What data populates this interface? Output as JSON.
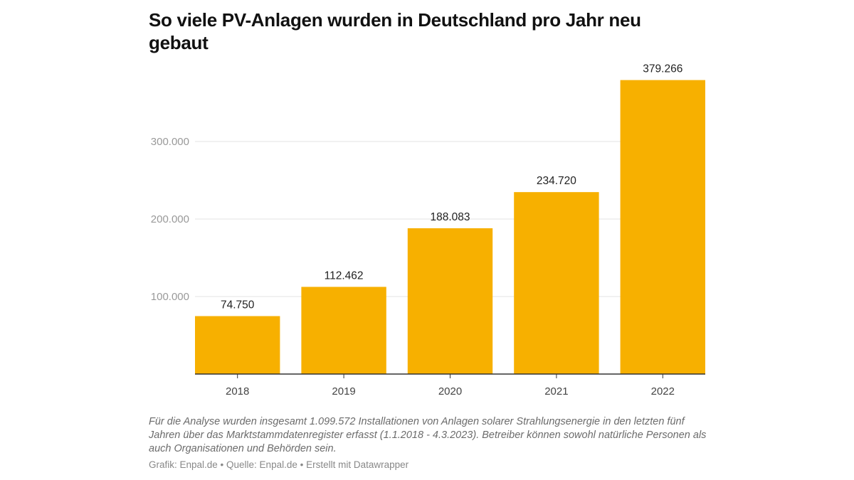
{
  "chart_data": {
    "type": "bar",
    "title": "So viele PV-Anlagen wurden in Deutschland pro Jahr neu gebaut",
    "categories": [
      "2018",
      "2019",
      "2020",
      "2021",
      "2022"
    ],
    "values": [
      74750,
      112462,
      188083,
      234720,
      379266
    ],
    "value_labels": [
      "74.750",
      "112.462",
      "188.083",
      "234.720",
      "379.266"
    ],
    "xlabel": "",
    "ylabel": "",
    "ylim": [
      0,
      380000
    ],
    "yticks": [
      100000,
      200000,
      300000
    ],
    "ytick_labels": [
      "100.000",
      "200.000",
      "300.000"
    ],
    "grid": true,
    "bar_color": "#f7b000"
  },
  "notes": "Für die Analyse wurden insgesamt 1.099.572 Installationen von Anlagen solarer Strahlungsenergie in den letzten fünf Jahren über das Marktstammdatenregister erfasst (1.1.2018 - 4.3.2023). Betreiber können sowohl natürliche Personen als auch Organisationen und Behörden sein.",
  "byline": "Grafik: Enpal.de • Quelle: Enpal.de • Erstellt mit Datawrapper"
}
